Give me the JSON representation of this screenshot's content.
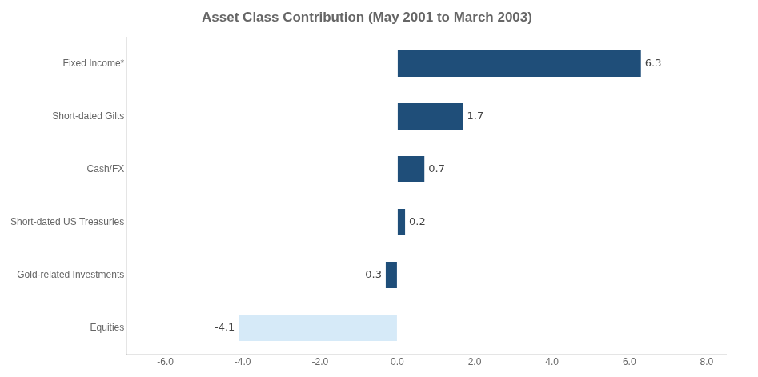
{
  "chart_data": {
    "type": "bar",
    "orientation": "horizontal",
    "title": "Asset Class Contribution (May 2001 to March 2003)",
    "categories": [
      "Fixed Income*",
      "Short-dated Gilts",
      "Cash/FX",
      "Short-dated US Treasuries",
      "Gold-related Investments",
      "Equities"
    ],
    "values": [
      6.3,
      1.7,
      0.7,
      0.2,
      -0.3,
      -4.1
    ],
    "colors": [
      "#1f4e79",
      "#1f4e79",
      "#1f4e79",
      "#1f4e79",
      "#1f4e79",
      "#d6eaf8"
    ],
    "xlim": [
      -7.0,
      8.5
    ],
    "xticks": [
      {
        "value": -6.0,
        "label": "-6.0"
      },
      {
        "value": -4.0,
        "label": "-4.0"
      },
      {
        "value": -2.0,
        "label": "-2.0"
      },
      {
        "value": 0.0,
        "label": "0.0"
      },
      {
        "value": 2.0,
        "label": "2.0"
      },
      {
        "value": 4.0,
        "label": "4.0"
      },
      {
        "value": 6.0,
        "label": "6.0"
      },
      {
        "value": 8.0,
        "label": "8.0"
      }
    ],
    "data_labels": true,
    "grid": false
  }
}
